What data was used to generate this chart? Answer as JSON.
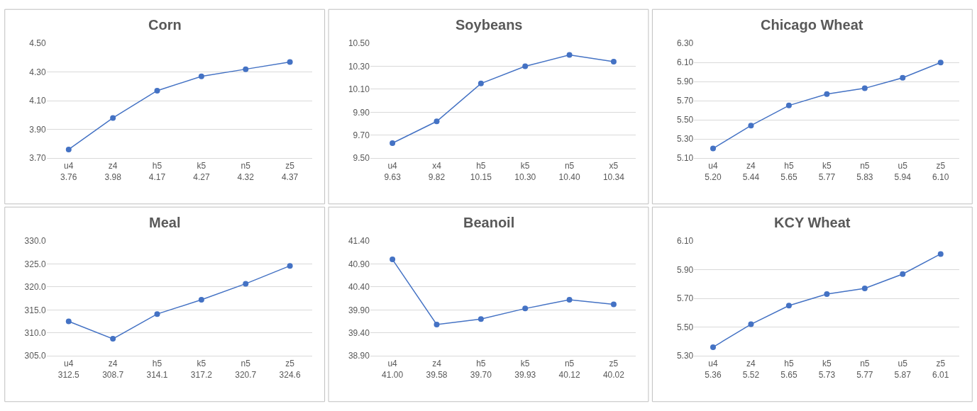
{
  "chart_data": [
    {
      "type": "line",
      "title": "Corn",
      "categories": [
        "u4",
        "z4",
        "h5",
        "k5",
        "n5",
        "z5"
      ],
      "values": [
        3.76,
        3.98,
        4.17,
        4.27,
        4.32,
        4.37
      ],
      "value_labels": [
        "3.76",
        "3.98",
        "4.17",
        "4.27",
        "4.32",
        "4.37"
      ],
      "color": "#4472c4",
      "marker": "circle",
      "grid": "y",
      "ylim": [
        3.7,
        4.5
      ],
      "yticks": [
        {
          "value": 3.7,
          "label": "3.70"
        },
        {
          "value": 3.9,
          "label": "3.90"
        },
        {
          "value": 4.1,
          "label": "4.10"
        },
        {
          "value": 4.3,
          "label": "4.30"
        },
        {
          "value": 4.5,
          "label": "4.50"
        }
      ]
    },
    {
      "type": "line",
      "title": "Soybeans",
      "categories": [
        "u4",
        "x4",
        "h5",
        "k5",
        "n5",
        "x5"
      ],
      "values": [
        9.63,
        9.82,
        10.15,
        10.3,
        10.4,
        10.34
      ],
      "value_labels": [
        "9.63",
        "9.82",
        "10.15",
        "10.30",
        "10.40",
        "10.34"
      ],
      "color": "#4472c4",
      "marker": "circle",
      "grid": "y",
      "ylim": [
        9.5,
        10.5
      ],
      "yticks": [
        {
          "value": 9.5,
          "label": "9.50"
        },
        {
          "value": 9.7,
          "label": "9.70"
        },
        {
          "value": 9.9,
          "label": "9.90"
        },
        {
          "value": 10.1,
          "label": "10.10"
        },
        {
          "value": 10.3,
          "label": "10.30"
        },
        {
          "value": 10.5,
          "label": "10.50"
        }
      ]
    },
    {
      "type": "line",
      "title": "Chicago Wheat",
      "categories": [
        "u4",
        "z4",
        "h5",
        "k5",
        "n5",
        "u5",
        "z5"
      ],
      "values": [
        5.2,
        5.44,
        5.65,
        5.77,
        5.83,
        5.94,
        6.1
      ],
      "value_labels": [
        "5.20",
        "5.44",
        "5.65",
        "5.77",
        "5.83",
        "5.94",
        "6.10"
      ],
      "color": "#4472c4",
      "marker": "circle",
      "grid": "y",
      "ylim": [
        5.1,
        6.3
      ],
      "yticks": [
        {
          "value": 5.1,
          "label": "5.10"
        },
        {
          "value": 5.3,
          "label": "5.30"
        },
        {
          "value": 5.5,
          "label": "5.50"
        },
        {
          "value": 5.7,
          "label": "5.70"
        },
        {
          "value": 5.9,
          "label": "5.90"
        },
        {
          "value": 6.1,
          "label": "6.10"
        },
        {
          "value": 6.3,
          "label": "6.30"
        }
      ]
    },
    {
      "type": "line",
      "title": "Meal",
      "categories": [
        "u4",
        "z4",
        "h5",
        "k5",
        "n5",
        "z5"
      ],
      "values": [
        312.5,
        308.7,
        314.1,
        317.2,
        320.7,
        324.6
      ],
      "value_labels": [
        "312.5",
        "308.7",
        "314.1",
        "317.2",
        "320.7",
        "324.6"
      ],
      "color": "#4472c4",
      "marker": "circle",
      "grid": "y",
      "ylim": [
        305,
        330
      ],
      "yticks": [
        {
          "value": 305,
          "label": "305.0"
        },
        {
          "value": 310,
          "label": "310.0"
        },
        {
          "value": 315,
          "label": "315.0"
        },
        {
          "value": 320,
          "label": "320.0"
        },
        {
          "value": 325,
          "label": "325.0"
        },
        {
          "value": 330,
          "label": "330.0"
        }
      ]
    },
    {
      "type": "line",
      "title": "Beanoil",
      "categories": [
        "u4",
        "z4",
        "h5",
        "k5",
        "n5",
        "z5"
      ],
      "values": [
        41.0,
        39.58,
        39.7,
        39.93,
        40.12,
        40.02
      ],
      "value_labels": [
        "41.00",
        "39.58",
        "39.70",
        "39.93",
        "40.12",
        "40.02"
      ],
      "color": "#4472c4",
      "marker": "circle",
      "grid": "y",
      "ylim": [
        38.9,
        41.4
      ],
      "yticks": [
        {
          "value": 38.9,
          "label": "38.90"
        },
        {
          "value": 39.4,
          "label": "39.40"
        },
        {
          "value": 39.9,
          "label": "39.90"
        },
        {
          "value": 40.4,
          "label": "40.40"
        },
        {
          "value": 40.9,
          "label": "40.90"
        },
        {
          "value": 41.4,
          "label": "41.40"
        }
      ]
    },
    {
      "type": "line",
      "title": "KCY Wheat",
      "categories": [
        "u4",
        "z4",
        "h5",
        "k5",
        "n5",
        "u5",
        "z5"
      ],
      "values": [
        5.36,
        5.52,
        5.65,
        5.73,
        5.77,
        5.87,
        6.01
      ],
      "value_labels": [
        "5.36",
        "5.52",
        "5.65",
        "5.73",
        "5.77",
        "5.87",
        "6.01"
      ],
      "color": "#4472c4",
      "marker": "circle",
      "grid": "y",
      "ylim": [
        5.3,
        6.1
      ],
      "yticks": [
        {
          "value": 5.3,
          "label": "5.30"
        },
        {
          "value": 5.5,
          "label": "5.50"
        },
        {
          "value": 5.7,
          "label": "5.70"
        },
        {
          "value": 5.9,
          "label": "5.90"
        },
        {
          "value": 6.1,
          "label": "6.10"
        }
      ]
    }
  ]
}
